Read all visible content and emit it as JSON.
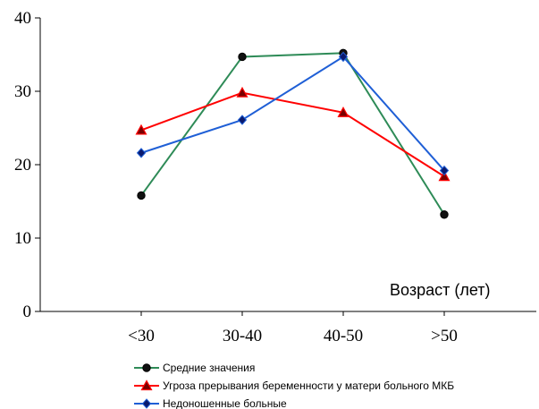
{
  "chart_data": {
    "type": "line",
    "categories": [
      "<30",
      "30-40",
      "40-50",
      ">50"
    ],
    "xlabel": "Возраст (лет)",
    "ylabel": "",
    "ylim": [
      0,
      40
    ],
    "yticks": [
      "0",
      "10",
      "20",
      "30",
      "40"
    ],
    "grid": false,
    "legend_position": "bottom",
    "series": [
      {
        "name": "Средние значения",
        "values": [
          15.8,
          34.7,
          35.2,
          13.2
        ],
        "color": "#2e8b57",
        "marker": "circle"
      },
      {
        "name": "Угроза прерывания беременности у матери больного МКБ",
        "values": [
          24.7,
          29.8,
          27.1,
          18.4
        ],
        "color": "#ff0000",
        "marker": "triangle"
      },
      {
        "name": "Недоношенные больные",
        "values": [
          21.6,
          26.1,
          34.7,
          19.2
        ],
        "color": "#1f5fd6",
        "marker": "diamond"
      }
    ]
  }
}
